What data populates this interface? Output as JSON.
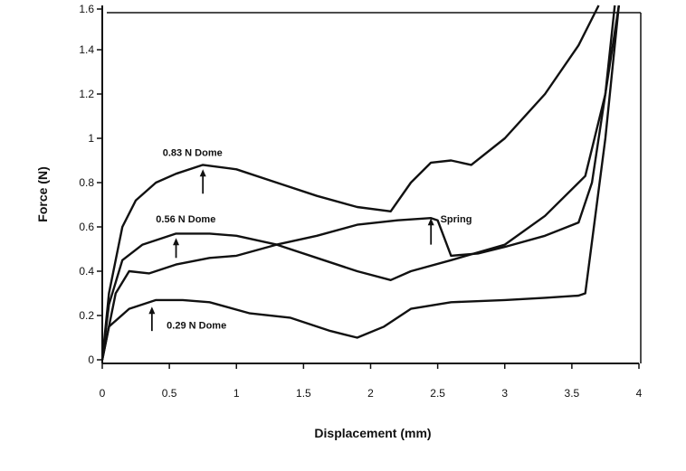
{
  "chart_data": {
    "type": "line",
    "title": "",
    "xlabel": "Displacement (mm)",
    "ylabel": "Force (N)",
    "xlim": [
      0,
      4
    ],
    "ylim": [
      0,
      1.6
    ],
    "xticks": [
      "0",
      "0.5",
      "1",
      "1.5",
      "2",
      "2.5",
      "3",
      "3.5",
      "4"
    ],
    "yticks": [
      "0",
      "0.2",
      "0.4",
      "0.6",
      "0.8",
      "1",
      "1.2",
      "1.4",
      "1.6"
    ],
    "grid": false,
    "line_color": "#111111",
    "series": [
      {
        "name": "0.83 N Dome",
        "x": [
          0,
          0.05,
          0.15,
          0.25,
          0.4,
          0.55,
          0.75,
          1.0,
          1.3,
          1.6,
          1.9,
          2.15,
          2.3,
          2.45,
          2.6,
          2.75,
          3.0,
          3.3,
          3.55,
          3.7
        ],
        "y": [
          0,
          0.3,
          0.6,
          0.72,
          0.8,
          0.84,
          0.88,
          0.86,
          0.8,
          0.74,
          0.69,
          0.67,
          0.8,
          0.89,
          0.9,
          0.88,
          1.0,
          1.2,
          1.42,
          1.6
        ],
        "label_at": [
          0.45,
          0.92
        ],
        "arrow": [
          0.75,
          0.75,
          0.86
        ]
      },
      {
        "name": "0.56 N Dome",
        "x": [
          0,
          0.05,
          0.15,
          0.3,
          0.55,
          0.8,
          1.0,
          1.3,
          1.6,
          1.9,
          2.15,
          2.3,
          2.6,
          3.0,
          3.3,
          3.6,
          3.75,
          3.85
        ],
        "y": [
          0,
          0.25,
          0.45,
          0.52,
          0.57,
          0.57,
          0.56,
          0.52,
          0.46,
          0.4,
          0.36,
          0.4,
          0.45,
          0.52,
          0.65,
          0.83,
          1.2,
          1.6
        ],
        "label_at": [
          0.4,
          0.62
        ],
        "arrow": [
          0.55,
          0.46,
          0.55
        ]
      },
      {
        "name": "Spring",
        "x": [
          0,
          0.1,
          0.2,
          0.35,
          0.55,
          0.8,
          1.0,
          1.3,
          1.6,
          1.9,
          2.2,
          2.45,
          2.5,
          2.6,
          2.8,
          3.0,
          3.3,
          3.55,
          3.65,
          3.75,
          3.82
        ],
        "y": [
          0,
          0.3,
          0.4,
          0.39,
          0.43,
          0.46,
          0.47,
          0.52,
          0.56,
          0.61,
          0.63,
          0.64,
          0.63,
          0.47,
          0.48,
          0.51,
          0.56,
          0.62,
          0.8,
          1.2,
          1.6
        ],
        "label_at": [
          2.52,
          0.62
        ],
        "arrow": [
          2.45,
          0.52,
          0.64
        ]
      },
      {
        "name": "0.29 N Dome",
        "x": [
          0,
          0.05,
          0.2,
          0.4,
          0.6,
          0.8,
          1.1,
          1.4,
          1.7,
          1.9,
          2.1,
          2.3,
          2.6,
          3.0,
          3.3,
          3.55,
          3.6,
          3.75,
          3.85
        ],
        "y": [
          0,
          0.15,
          0.23,
          0.27,
          0.27,
          0.26,
          0.21,
          0.19,
          0.13,
          0.1,
          0.15,
          0.23,
          0.26,
          0.27,
          0.28,
          0.29,
          0.3,
          1.0,
          1.6
        ],
        "label_at": [
          0.48,
          0.14
        ],
        "arrow": [
          0.37,
          0.13,
          0.24
        ]
      }
    ]
  }
}
